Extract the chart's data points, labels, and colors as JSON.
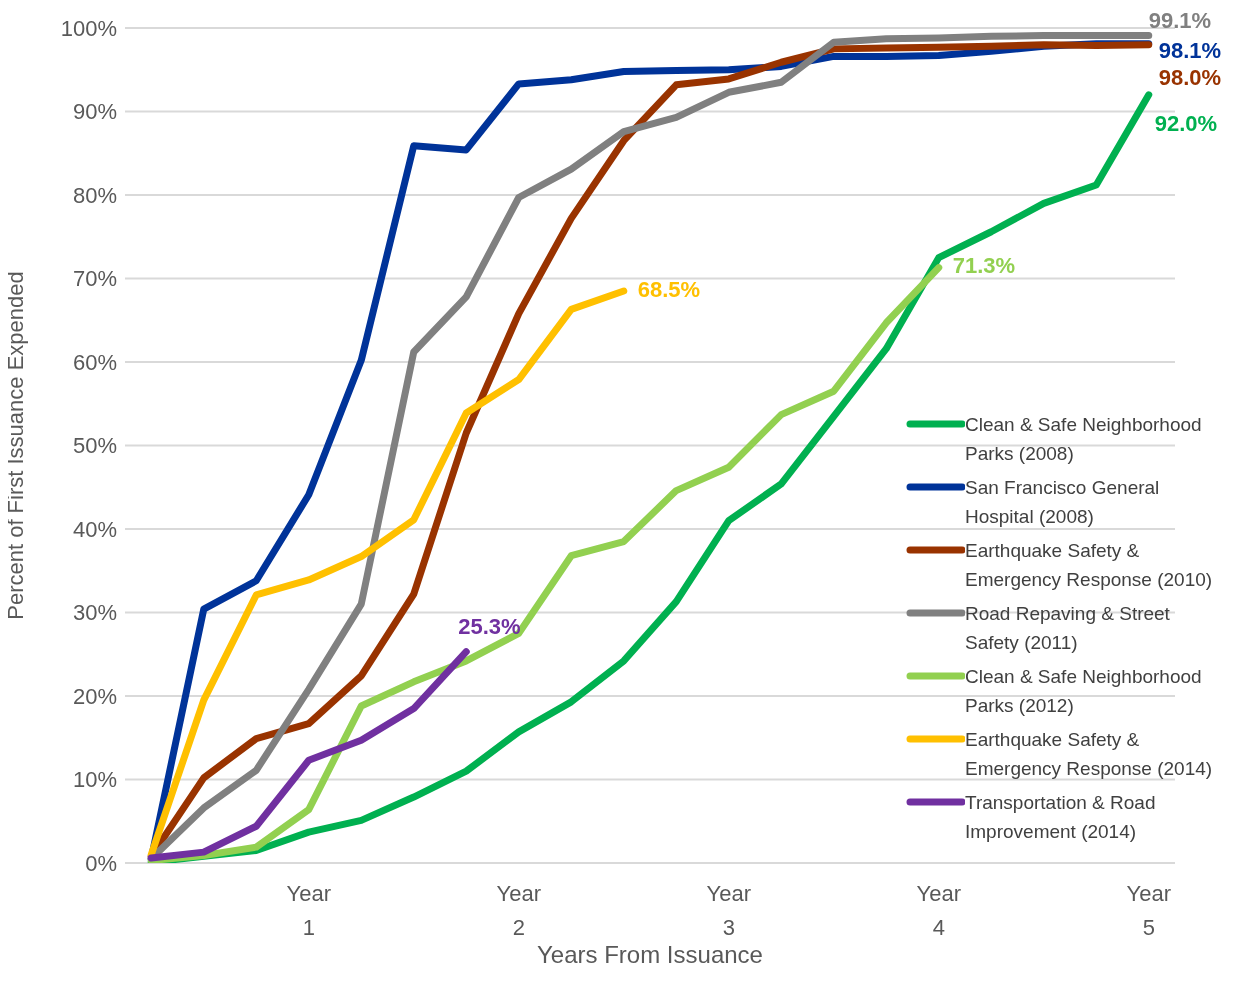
{
  "chart_data": {
    "type": "line",
    "xlabel": "Years From Issuance",
    "ylabel": "Percent of First Issuance Expended",
    "categories": [
      null,
      null,
      null,
      "Year 1",
      null,
      null,
      null,
      "Year 2",
      null,
      null,
      null,
      "Year 3",
      null,
      null,
      null,
      "Year 4",
      null,
      null,
      null,
      "Year 5"
    ],
    "ylim": [
      0,
      100
    ],
    "yticks": [
      {
        "value": 0,
        "label": "0%"
      },
      {
        "value": 10,
        "label": "10%"
      },
      {
        "value": 20,
        "label": "20%"
      },
      {
        "value": 30,
        "label": "30%"
      },
      {
        "value": 40,
        "label": "40%"
      },
      {
        "value": 50,
        "label": "50%"
      },
      {
        "value": 60,
        "label": "60%"
      },
      {
        "value": 70,
        "label": "70%"
      },
      {
        "value": 80,
        "label": "80%"
      },
      {
        "value": 90,
        "label": "90%"
      },
      {
        "value": 100,
        "label": "100%"
      }
    ],
    "grid": "y",
    "legend": "right",
    "marker": "none",
    "line_style": "solid",
    "series": [
      {
        "name": "Clean & Safe Neighborhood Parks (2008)",
        "color": "#00b050",
        "values": [
          0.1,
          0.8,
          1.5,
          3.7,
          5.1,
          7.9,
          11.0,
          15.7,
          19.3,
          24.2,
          31.3,
          41.0,
          45.4,
          53.5,
          61.6,
          72.5,
          75.6,
          79.0,
          81.2,
          92.0
        ],
        "value_labels": [
          null,
          null,
          null,
          null,
          null,
          null,
          null,
          null,
          null,
          null,
          null,
          null,
          null,
          null,
          null,
          null,
          null,
          null,
          null,
          "92.0%"
        ]
      },
      {
        "name": "San Francisco General Hospital (2008)",
        "color": "#003399",
        "values": [
          0.5,
          30.4,
          33.8,
          44.1,
          60.2,
          85.9,
          85.4,
          93.3,
          93.8,
          94.8,
          94.9,
          95.0,
          95.4,
          96.6,
          96.6,
          96.7,
          97.2,
          97.8,
          98.1,
          98.1
        ],
        "value_labels": [
          null,
          null,
          null,
          null,
          null,
          null,
          null,
          null,
          null,
          null,
          null,
          null,
          null,
          null,
          null,
          null,
          null,
          null,
          null,
          "98.1%"
        ]
      },
      {
        "name": "Earthquake Safety & Emergency Response (2010)",
        "color": "#993300",
        "values": [
          0.8,
          10.2,
          14.9,
          16.7,
          22.4,
          32.2,
          51.5,
          65.8,
          77.2,
          86.5,
          93.2,
          93.9,
          95.9,
          97.5,
          97.6,
          97.7,
          97.8,
          98.0,
          97.9,
          98.0
        ],
        "value_labels": [
          null,
          null,
          null,
          null,
          null,
          null,
          null,
          null,
          null,
          null,
          null,
          null,
          null,
          null,
          null,
          null,
          null,
          null,
          null,
          "98.0%"
        ]
      },
      {
        "name": "Road Repaving & Street Safety (2011)",
        "color": "#808080",
        "values": [
          0.5,
          6.6,
          11.1,
          20.8,
          31.0,
          61.2,
          67.8,
          79.7,
          83.1,
          87.6,
          89.3,
          92.3,
          93.5,
          98.3,
          98.7,
          98.8,
          99.0,
          99.1,
          99.1,
          99.1
        ],
        "value_labels": [
          null,
          null,
          null,
          null,
          null,
          null,
          null,
          null,
          null,
          null,
          null,
          null,
          null,
          null,
          null,
          null,
          null,
          null,
          null,
          "99.1%"
        ]
      },
      {
        "name": "Clean & Safe Neighborhood Parks (2012)",
        "color": "#92d050",
        "values": [
          0.3,
          0.9,
          1.9,
          6.4,
          18.8,
          21.7,
          24.2,
          27.5,
          36.8,
          38.5,
          44.6,
          47.4,
          53.7,
          56.5,
          64.7,
          71.3,
          null,
          null,
          null,
          null
        ],
        "value_labels": [
          null,
          null,
          null,
          null,
          null,
          null,
          null,
          null,
          null,
          null,
          null,
          null,
          null,
          null,
          null,
          "71.3%",
          null,
          null,
          null,
          null
        ]
      },
      {
        "name": "Earthquake Safety & Emergency Response (2014)",
        "color": "#ffc000",
        "values": [
          1.0,
          19.5,
          32.1,
          33.9,
          36.7,
          41.1,
          53.9,
          57.9,
          66.3,
          68.5,
          null,
          null,
          null,
          null,
          null,
          null,
          null,
          null,
          null,
          null
        ],
        "value_labels": [
          null,
          null,
          null,
          null,
          null,
          null,
          null,
          null,
          null,
          "68.5%",
          null,
          null,
          null,
          null,
          null,
          null,
          null,
          null,
          null,
          null
        ]
      },
      {
        "name": "Transportation & Road Improvement (2014)",
        "color": "#7030a0",
        "values": [
          0.6,
          1.3,
          4.4,
          12.3,
          14.7,
          18.5,
          25.3,
          null,
          null,
          null,
          null,
          null,
          null,
          null,
          null,
          null,
          null,
          null,
          null,
          null
        ],
        "value_labels": [
          null,
          null,
          null,
          null,
          null,
          null,
          "25.3%",
          null,
          null,
          null,
          null,
          null,
          null,
          null,
          null,
          null,
          null,
          null,
          null,
          null
        ]
      }
    ]
  }
}
